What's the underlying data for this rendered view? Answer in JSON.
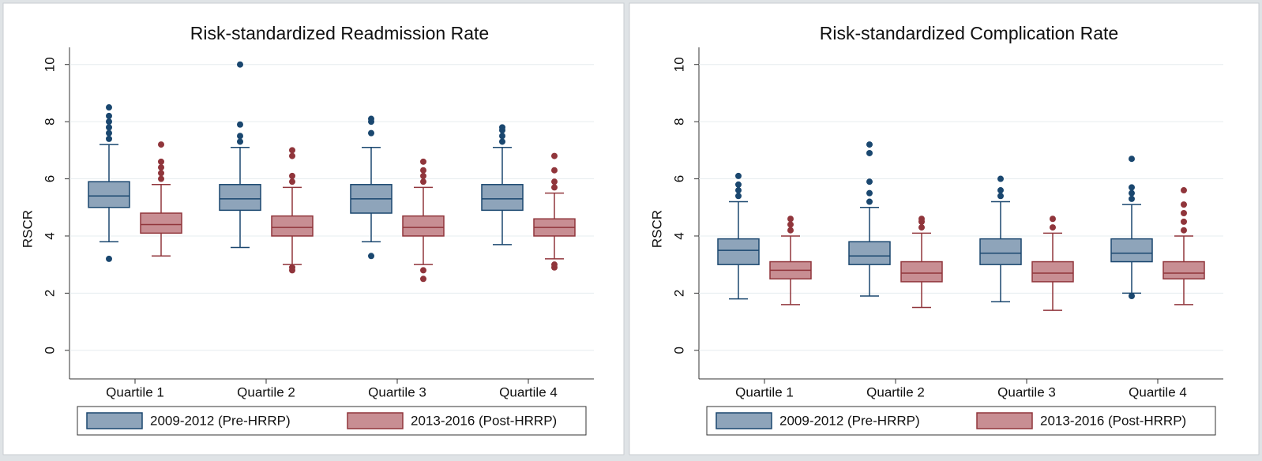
{
  "chart_data": [
    {
      "type": "box",
      "title": "Risk-standardized Readmission Rate",
      "ylabel": "RSCR",
      "categories": [
        "Quartile 1",
        "Quartile 2",
        "Quartile 3",
        "Quartile 4"
      ],
      "ylim": [
        -1,
        10.6
      ],
      "yticks": [
        0,
        2,
        4,
        6,
        8,
        10
      ],
      "grid": true,
      "legend": "bottom",
      "series": [
        {
          "name": "2009-2012 (Pre-HRRP)",
          "color": "#1a476f",
          "fill": "#8ea4ba",
          "min": [
            3.8,
            3.6,
            3.8,
            3.7
          ],
          "q1": [
            5.0,
            4.9,
            4.8,
            4.9
          ],
          "median": [
            5.4,
            5.3,
            5.3,
            5.3
          ],
          "q3": [
            5.9,
            5.8,
            5.8,
            5.8
          ],
          "max": [
            7.2,
            7.1,
            7.1,
            7.1
          ],
          "outliers": [
            [
              3.2,
              7.4,
              7.6,
              7.8,
              8.0,
              8.2,
              8.5
            ],
            [
              7.3,
              7.5,
              7.9,
              10.0
            ],
            [
              3.3,
              7.6,
              8.0,
              8.1
            ],
            [
              7.3,
              7.5,
              7.7,
              7.8
            ]
          ]
        },
        {
          "name": "2013-2016 (Post-HRRP)",
          "color": "#90353b",
          "fill": "#c88e93",
          "min": [
            3.3,
            3.0,
            3.0,
            3.2
          ],
          "q1": [
            4.1,
            4.0,
            4.0,
            4.0
          ],
          "median": [
            4.4,
            4.3,
            4.3,
            4.3
          ],
          "q3": [
            4.8,
            4.7,
            4.7,
            4.6
          ],
          "max": [
            5.8,
            5.7,
            5.7,
            5.5
          ],
          "outliers": [
            [
              6.0,
              6.2,
              6.4,
              6.6,
              7.2
            ],
            [
              2.8,
              2.9,
              5.9,
              6.1,
              6.8,
              7.0
            ],
            [
              2.5,
              2.8,
              5.9,
              6.1,
              6.3,
              6.6
            ],
            [
              2.9,
              3.0,
              5.7,
              5.9,
              6.3,
              6.8
            ]
          ]
        }
      ]
    },
    {
      "type": "box",
      "title": "Risk-standardized Complication Rate",
      "ylabel": "RSCR",
      "categories": [
        "Quartile 1",
        "Quartile 2",
        "Quartile 3",
        "Quartile 4"
      ],
      "ylim": [
        -1,
        10.6
      ],
      "yticks": [
        0,
        2,
        4,
        6,
        8,
        10
      ],
      "grid": true,
      "legend": "bottom",
      "series": [
        {
          "name": "2009-2012 (Pre-HRRP)",
          "color": "#1a476f",
          "fill": "#8ea4ba",
          "min": [
            1.8,
            1.9,
            1.7,
            2.0
          ],
          "q1": [
            3.0,
            3.0,
            3.0,
            3.1
          ],
          "median": [
            3.5,
            3.3,
            3.4,
            3.4
          ],
          "q3": [
            3.9,
            3.8,
            3.9,
            3.9
          ],
          "max": [
            5.2,
            5.0,
            5.2,
            5.1
          ],
          "outliers": [
            [
              5.4,
              5.6,
              5.8,
              6.1
            ],
            [
              5.2,
              5.5,
              5.9,
              6.9,
              7.2
            ],
            [
              5.4,
              5.6,
              6.0
            ],
            [
              1.9,
              5.3,
              5.5,
              5.7,
              6.7
            ]
          ]
        },
        {
          "name": "2013-2016 (Post-HRRP)",
          "color": "#90353b",
          "fill": "#c88e93",
          "min": [
            1.6,
            1.5,
            1.4,
            1.6
          ],
          "q1": [
            2.5,
            2.4,
            2.4,
            2.5
          ],
          "median": [
            2.8,
            2.7,
            2.7,
            2.7
          ],
          "q3": [
            3.1,
            3.1,
            3.1,
            3.1
          ],
          "max": [
            4.0,
            4.1,
            4.1,
            4.0
          ],
          "outliers": [
            [
              4.2,
              4.4,
              4.6
            ],
            [
              4.3,
              4.5,
              4.6
            ],
            [
              4.3,
              4.6
            ],
            [
              4.2,
              4.5,
              4.8,
              5.1,
              5.6
            ]
          ]
        }
      ]
    }
  ]
}
